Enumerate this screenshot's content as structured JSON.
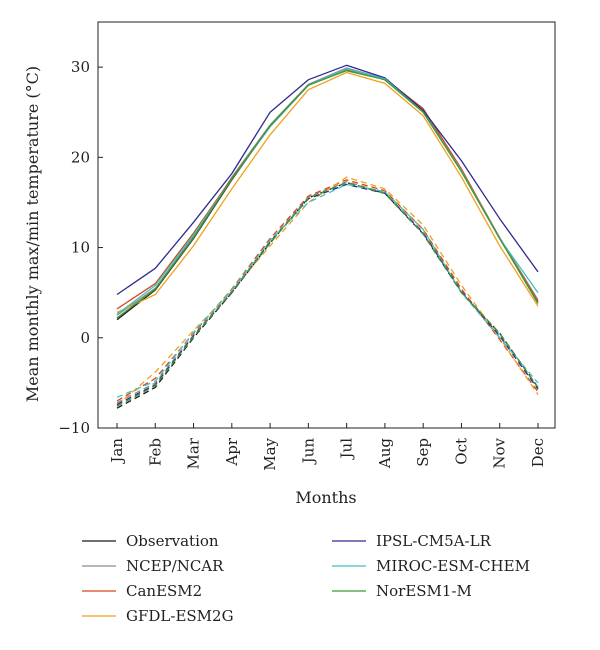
{
  "chart_data": {
    "type": "line",
    "title": "",
    "xlabel": "Months",
    "ylabel": "Mean monthly max/min temperature (°C)",
    "ylim": [
      -10,
      35
    ],
    "yticks": [
      -10,
      0,
      10,
      20,
      30
    ],
    "categories": [
      "Jan",
      "Feb",
      "Mar",
      "Apr",
      "May",
      "Jun",
      "Jul",
      "Aug",
      "Sep",
      "Oct",
      "Nov",
      "Dec"
    ],
    "grid": false,
    "legend_position": "bottom",
    "line_styles": {
      "max": "solid",
      "min": "dashed"
    },
    "series": [
      {
        "name": "Observation",
        "color": "#1a1a1a",
        "max": [
          2.0,
          5.3,
          11.0,
          17.5,
          23.5,
          28.0,
          29.8,
          28.6,
          25.0,
          18.5,
          11.0,
          4.0
        ],
        "min": [
          -7.8,
          -5.5,
          0.0,
          5.0,
          10.5,
          15.5,
          17.2,
          16.0,
          11.5,
          5.0,
          0.5,
          -5.5
        ]
      },
      {
        "name": "NCEP/NCAR",
        "color": "#8c8c8c",
        "max": [
          2.5,
          5.5,
          11.2,
          17.8,
          23.6,
          28.1,
          29.9,
          28.7,
          25.1,
          18.6,
          11.1,
          4.2
        ],
        "min": [
          -7.2,
          -5.0,
          0.3,
          5.2,
          10.7,
          15.6,
          17.3,
          16.1,
          11.7,
          5.2,
          0.4,
          -5.6
        ]
      },
      {
        "name": "CanESM2",
        "color": "#d9481c",
        "max": [
          3.2,
          6.0,
          11.6,
          17.7,
          23.4,
          28.0,
          29.7,
          28.7,
          25.4,
          18.7,
          11.0,
          4.0
        ],
        "min": [
          -7.0,
          -4.5,
          0.5,
          5.4,
          11.0,
          15.7,
          17.5,
          16.3,
          12.0,
          5.4,
          -0.2,
          -6.0
        ]
      },
      {
        "name": "GFDL-ESM2G",
        "color": "#f0a11c",
        "max": [
          2.8,
          4.8,
          10.2,
          16.5,
          22.5,
          27.5,
          29.4,
          28.2,
          24.6,
          17.8,
          10.2,
          3.5
        ],
        "min": [
          -7.5,
          -3.8,
          0.8,
          5.2,
          10.2,
          15.0,
          17.8,
          16.5,
          12.5,
          5.8,
          0.0,
          -6.3
        ]
      },
      {
        "name": "IPSL-CM5A-LR",
        "color": "#2e2a8e",
        "max": [
          4.8,
          7.7,
          12.8,
          18.2,
          25.0,
          28.6,
          30.2,
          28.8,
          25.2,
          19.6,
          13.2,
          7.3
        ],
        "min": [
          -7.4,
          -5.2,
          0.2,
          5.0,
          10.6,
          15.4,
          17.0,
          16.0,
          11.6,
          5.1,
          0.2,
          -5.7
        ]
      },
      {
        "name": "MIROC-ESM-CHEM",
        "color": "#45bfc0",
        "max": [
          2.6,
          5.8,
          11.4,
          17.6,
          23.4,
          28.0,
          29.8,
          28.7,
          25.0,
          18.5,
          11.0,
          5.0
        ],
        "min": [
          -6.6,
          -4.8,
          0.6,
          5.3,
          10.8,
          15.0,
          17.0,
          16.2,
          12.0,
          5.0,
          0.0,
          -5.0
        ]
      },
      {
        "name": "NorESM1-M",
        "color": "#3a9a3a",
        "max": [
          2.2,
          5.4,
          11.1,
          17.6,
          23.5,
          28.0,
          29.6,
          28.6,
          25.0,
          18.4,
          11.0,
          3.8
        ],
        "min": [
          -7.6,
          -5.3,
          0.1,
          5.1,
          10.5,
          15.5,
          17.2,
          16.0,
          11.5,
          5.0,
          0.5,
          -5.5
        ]
      }
    ]
  }
}
